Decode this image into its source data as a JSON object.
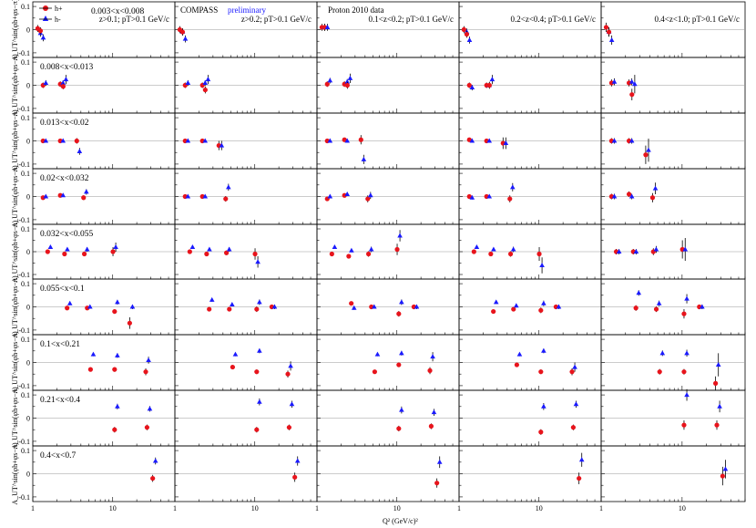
{
  "chart_data": {
    "type": "scatter",
    "layout": "grid",
    "rows": 9,
    "columns": 5,
    "xlabel": "Q² (GeV/c)²",
    "ylabel": "A_UT^sin(φh+φs−π)",
    "xscale": "log",
    "xlim": [
      1,
      60
    ],
    "ylim": [
      -0.12,
      0.12
    ],
    "xticks": [
      "1",
      "10"
    ],
    "yticks": [
      "0.1",
      "0",
      "-0.1"
    ],
    "legend": [
      "h+",
      "h-"
    ],
    "series_colors": {
      "h+": "#e8141c",
      "h-": "#1a1aff"
    },
    "text": {
      "compass": "COMPASS",
      "preliminary": "preliminary",
      "proton": "Proton 2010 data"
    },
    "column_headers": [
      "z>0.1; pT>0.1 GeV/c",
      "z>0.2; pT>0.1 GeV/c",
      "0.1<z<0.2; pT>0.1 GeV/c",
      "0.2<z<0.4; pT>0.1 GeV/c",
      "0.4<z<1.0; pT>0.1 GeV/c"
    ],
    "row_labels": [
      "0.003<x<0.008",
      "0.008<x<0.013",
      "0.013<x<0.02",
      "0.02<x<0.032",
      "0.032<x<0.055",
      "0.055<x<0.1",
      "0.1<x<0.21",
      "0.21<x<0.4",
      "0.4<x<0.7"
    ],
    "q2_bins": [
      [
        1.2,
        1.3
      ],
      [
        1.4,
        2.3,
        2.5
      ],
      [
        1.4,
        2.3,
        3.7
      ],
      [
        1.4,
        2.3,
        4.5
      ],
      [
        1.6,
        2.6,
        4.6,
        10.5
      ],
      [
        2.8,
        5.0,
        11.0,
        17.0
      ],
      [
        5.5,
        11.0,
        27.0
      ],
      [
        11.0,
        28.0
      ],
      [
        33.0
      ]
    ],
    "data": [
      [
        {
          "hp": [
            0.005,
            -0.005
          ],
          "hm": [
            -0.015,
            -0.035
          ],
          "ep": [
            0.015,
            0.015
          ],
          "em": [
            0.015,
            0.015
          ]
        },
        {
          "hp": [
            0.0,
            -0.01
          ],
          "hm": [
            -0.01,
            -0.04
          ],
          "ep": [
            0.015,
            0.015
          ],
          "em": [
            0.015,
            0.015
          ]
        },
        {
          "hp": [
            0.01,
            0.01
          ],
          "hm": [
            0.01,
            0.01
          ],
          "ep": [
            0.015,
            0.015
          ],
          "em": [
            0.015,
            0.015
          ]
        },
        {
          "hp": [
            0.0,
            -0.02
          ],
          "hm": [
            -0.01,
            -0.045
          ],
          "ep": [
            0.015,
            0.015
          ],
          "em": [
            0.015,
            0.015
          ]
        },
        {
          "hp": [
            0.01,
            -0.01
          ],
          "hm": [
            -0.01,
            -0.045
          ],
          "ep": [
            0.02,
            0.02
          ],
          "em": [
            0.02,
            0.02
          ]
        }
      ],
      [
        {
          "hp": [
            0.0,
            0.005,
            -0.005
          ],
          "hm": [
            0.01,
            0.01,
            0.025
          ],
          "ep": [
            0.012,
            0.012,
            0.012
          ],
          "em": [
            0.012,
            0.012,
            0.02
          ]
        },
        {
          "hp": [
            0.0,
            0.0,
            -0.02
          ],
          "hm": [
            0.01,
            0.01,
            0.025
          ],
          "ep": [
            0.012,
            0.012,
            0.015
          ],
          "em": [
            0.012,
            0.012,
            0.02
          ]
        },
        {
          "hp": [
            0.005,
            0.005,
            0.0
          ],
          "hm": [
            0.02,
            0.015,
            0.03
          ],
          "ep": [
            0.012,
            0.012,
            0.015
          ],
          "em": [
            0.012,
            0.012,
            0.02
          ]
        },
        {
          "hp": [
            0.0,
            0.0,
            0.0
          ],
          "hm": [
            -0.01,
            0.0,
            0.025
          ],
          "ep": [
            0.012,
            0.012,
            0.015
          ],
          "em": [
            0.012,
            0.012,
            0.02
          ]
        },
        {
          "hp": [
            0.01,
            0.01,
            -0.04
          ],
          "hm": [
            0.015,
            0.015,
            0.005
          ],
          "ep": [
            0.015,
            0.015,
            0.025
          ],
          "em": [
            0.015,
            0.015,
            0.04
          ]
        }
      ],
      [
        {
          "hp": [
            0.0,
            0.0,
            0.0
          ],
          "hm": [
            0.0,
            0.0,
            -0.045
          ],
          "ep": [
            0.006,
            0.006,
            0.012
          ],
          "em": [
            0.006,
            0.006,
            0.015
          ]
        },
        {
          "hp": [
            0.0,
            0.0,
            -0.02
          ],
          "hm": [
            0.0,
            0.0,
            -0.02
          ],
          "ep": [
            0.006,
            0.006,
            0.02
          ],
          "em": [
            0.006,
            0.006,
            0.02
          ]
        },
        {
          "hp": [
            0.0,
            0.005,
            0.005
          ],
          "hm": [
            0.0,
            0.0,
            -0.08
          ],
          "ep": [
            0.008,
            0.008,
            0.02
          ],
          "em": [
            0.008,
            0.008,
            0.02
          ]
        },
        {
          "hp": [
            0.005,
            0.0,
            -0.01
          ],
          "hm": [
            0.0,
            0.0,
            -0.01
          ],
          "ep": [
            0.008,
            0.008,
            0.025
          ],
          "em": [
            0.008,
            0.008,
            0.025
          ]
        },
        {
          "hp": [
            0.0,
            0.0,
            -0.06
          ],
          "hm": [
            0.0,
            0.0,
            -0.04
          ],
          "ep": [
            0.012,
            0.012,
            0.04
          ],
          "em": [
            0.012,
            0.012,
            0.05
          ]
        }
      ],
      [
        {
          "hp": [
            -0.005,
            0.005,
            -0.005
          ],
          "hm": [
            0.0,
            0.005,
            0.02
          ],
          "ep": [
            0.006,
            0.006,
            0.01
          ],
          "em": [
            0.006,
            0.006,
            0.012
          ]
        },
        {
          "hp": [
            0.0,
            0.0,
            -0.01
          ],
          "hm": [
            0.0,
            0.0,
            0.04
          ],
          "ep": [
            0.006,
            0.006,
            0.012
          ],
          "em": [
            0.006,
            0.006,
            0.015
          ]
        },
        {
          "hp": [
            -0.01,
            0.005,
            -0.01
          ],
          "hm": [
            0.0,
            0.01,
            0.005
          ],
          "ep": [
            0.008,
            0.008,
            0.015
          ],
          "em": [
            0.008,
            0.008,
            0.015
          ]
        },
        {
          "hp": [
            0.0,
            0.0,
            -0.01
          ],
          "hm": [
            -0.005,
            0.0,
            0.04
          ],
          "ep": [
            0.008,
            0.008,
            0.015
          ],
          "em": [
            0.008,
            0.008,
            0.018
          ]
        },
        {
          "hp": [
            0.0,
            0.01,
            -0.005
          ],
          "hm": [
            0.0,
            0.0,
            0.035
          ],
          "ep": [
            0.012,
            0.012,
            0.02
          ],
          "em": [
            0.012,
            0.012,
            0.025
          ]
        }
      ],
      [
        {
          "hp": [
            0.0,
            -0.01,
            -0.01,
            0.0
          ],
          "hm": [
            0.02,
            0.01,
            0.01,
            0.02
          ],
          "ep": [
            0.007,
            0.007,
            0.01,
            0.02
          ],
          "em": [
            0.007,
            0.007,
            0.01,
            0.02
          ]
        },
        {
          "hp": [
            0.0,
            -0.01,
            -0.005,
            -0.01
          ],
          "hm": [
            0.02,
            0.01,
            0.01,
            -0.045
          ],
          "ep": [
            0.007,
            0.007,
            0.01,
            0.025
          ],
          "em": [
            0.007,
            0.007,
            0.01,
            0.025
          ]
        },
        {
          "hp": [
            -0.01,
            -0.02,
            -0.01,
            0.01
          ],
          "hm": [
            0.02,
            0.005,
            0.01,
            0.07
          ],
          "ep": [
            0.008,
            0.008,
            0.012,
            0.025
          ],
          "em": [
            0.008,
            0.008,
            0.012,
            0.025
          ]
        },
        {
          "hp": [
            0.0,
            -0.01,
            -0.01,
            -0.01
          ],
          "hm": [
            0.02,
            0.01,
            0.01,
            -0.06
          ],
          "ep": [
            0.008,
            0.008,
            0.012,
            0.03
          ],
          "em": [
            0.008,
            0.008,
            0.012,
            0.035
          ]
        },
        {
          "hp": [
            0.0,
            0.0,
            0.0,
            0.01
          ],
          "hm": [
            0.0,
            0.0,
            0.01,
            0.01
          ],
          "ep": [
            0.012,
            0.012,
            0.015,
            0.04
          ],
          "em": [
            0.012,
            0.012,
            0.015,
            0.05
          ]
        }
      ],
      [
        {
          "hp": [
            -0.005,
            -0.005,
            -0.02,
            -0.07
          ],
          "hm": [
            0.015,
            0.0,
            0.02,
            0.0
          ],
          "ep": [
            0.008,
            0.008,
            0.01,
            0.025
          ],
          "em": [
            0.008,
            0.008,
            0.01,
            0.01
          ]
        },
        {
          "hp": [
            -0.01,
            -0.01,
            -0.01,
            0.0
          ],
          "hm": [
            0.03,
            0.01,
            0.02,
            0.0
          ],
          "ep": [
            0.008,
            0.008,
            0.012,
            0.01
          ],
          "em": [
            0.008,
            0.008,
            0.012,
            0.01
          ]
        },
        {
          "hp": [
            0.015,
            0.0,
            -0.03,
            0.0
          ],
          "hm": [
            -0.005,
            0.0,
            0.02,
            0.0
          ],
          "ep": [
            0.008,
            0.008,
            0.012,
            0.01
          ],
          "em": [
            0.008,
            0.008,
            0.012,
            0.01
          ]
        },
        {
          "hp": [
            -0.02,
            -0.01,
            -0.015,
            0.0
          ],
          "hm": [
            0.02,
            0.005,
            0.015,
            0.0
          ],
          "ep": [
            0.008,
            0.008,
            0.012,
            0.01
          ],
          "em": [
            0.008,
            0.008,
            0.012,
            0.01
          ]
        },
        {
          "hp": [
            -0.005,
            -0.01,
            -0.03,
            0.0
          ],
          "hm": [
            0.06,
            0.015,
            0.035,
            0.0
          ],
          "ep": [
            0.012,
            0.012,
            0.02,
            0.01
          ],
          "em": [
            0.012,
            0.012,
            0.02,
            0.01
          ]
        }
      ],
      [
        {
          "hp": [
            -0.03,
            -0.03,
            -0.04
          ],
          "hm": [
            0.035,
            0.03,
            0.01
          ],
          "ep": [
            0.008,
            0.01,
            0.015
          ],
          "em": [
            0.008,
            0.01,
            0.015
          ]
        },
        {
          "hp": [
            -0.02,
            -0.04,
            -0.05
          ],
          "hm": [
            0.035,
            0.05,
            -0.015
          ],
          "ep": [
            0.008,
            0.01,
            0.015
          ],
          "em": [
            0.008,
            0.01,
            0.02
          ]
        },
        {
          "hp": [
            -0.04,
            -0.01,
            -0.035
          ],
          "hm": [
            0.035,
            0.04,
            0.025
          ],
          "ep": [
            0.008,
            0.01,
            0.015
          ],
          "em": [
            0.008,
            0.01,
            0.02
          ]
        },
        {
          "hp": [
            -0.01,
            -0.04,
            -0.04
          ],
          "hm": [
            0.035,
            0.05,
            -0.02
          ],
          "ep": [
            0.008,
            0.01,
            0.015
          ],
          "em": [
            0.008,
            0.01,
            0.02
          ]
        },
        {
          "hp": [
            -0.04,
            -0.04,
            -0.09
          ],
          "hm": [
            0.04,
            0.04,
            -0.01
          ],
          "ep": [
            0.012,
            0.012,
            0.03
          ],
          "em": [
            0.012,
            0.015,
            0.05
          ]
        }
      ],
      [
        {
          "hp": [
            -0.05,
            -0.04
          ],
          "hm": [
            0.05,
            0.04
          ],
          "ep": [
            0.012,
            0.012
          ],
          "em": [
            0.012,
            0.012
          ]
        },
        {
          "hp": [
            -0.05,
            -0.04
          ],
          "hm": [
            0.07,
            0.06
          ],
          "ep": [
            0.012,
            0.012
          ],
          "em": [
            0.015,
            0.015
          ]
        },
        {
          "hp": [
            -0.045,
            -0.035
          ],
          "hm": [
            0.035,
            0.025
          ],
          "ep": [
            0.012,
            0.012
          ],
          "em": [
            0.015,
            0.015
          ]
        },
        {
          "hp": [
            -0.06,
            -0.04
          ],
          "hm": [
            0.05,
            0.06
          ],
          "ep": [
            0.012,
            0.012
          ],
          "em": [
            0.015,
            0.015
          ]
        },
        {
          "hp": [
            -0.03,
            -0.03
          ],
          "hm": [
            0.1,
            0.05
          ],
          "ep": [
            0.02,
            0.02
          ],
          "em": [
            0.025,
            0.025
          ]
        }
      ],
      [
        {
          "hp": [
            -0.02
          ],
          "hm": [
            0.055
          ],
          "ep": [
            0.015
          ],
          "em": [
            0.015
          ]
        },
        {
          "hp": [
            -0.015
          ],
          "hm": [
            0.055
          ],
          "ep": [
            0.02
          ],
          "em": [
            0.02
          ]
        },
        {
          "hp": [
            -0.04
          ],
          "hm": [
            0.05
          ],
          "ep": [
            0.02
          ],
          "em": [
            0.025
          ]
        },
        {
          "hp": [
            -0.02
          ],
          "hm": [
            0.06
          ],
          "ep": [
            0.025
          ],
          "em": [
            0.03
          ]
        },
        {
          "hp": [
            -0.01
          ],
          "hm": [
            0.02
          ],
          "ep": [
            0.04
          ],
          "em": [
            0.04
          ]
        }
      ]
    ]
  }
}
